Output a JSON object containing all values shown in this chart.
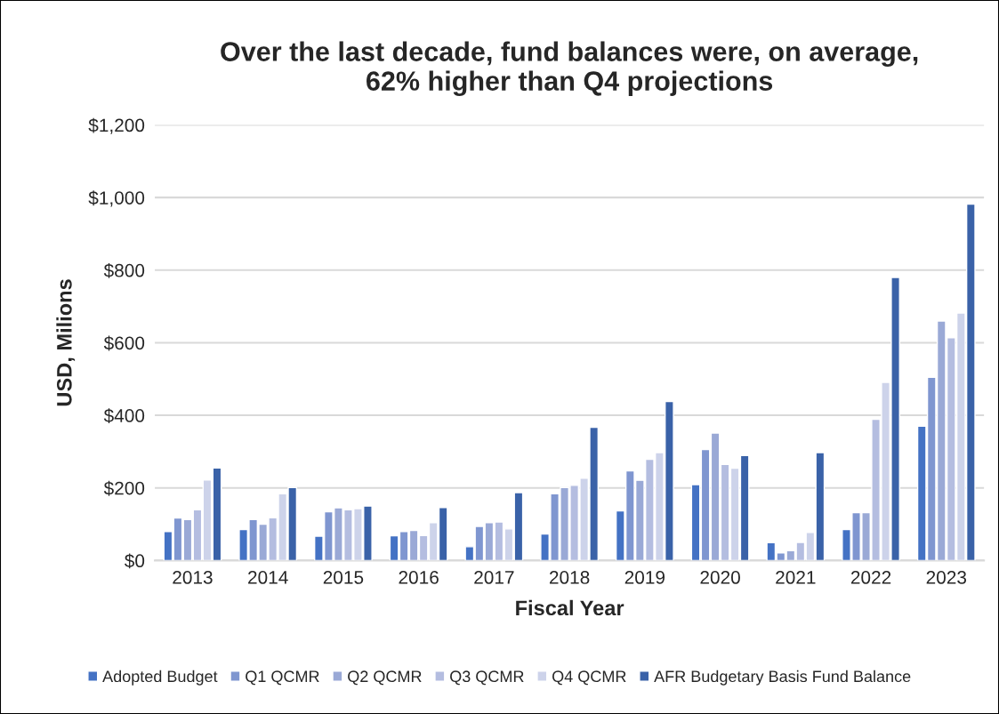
{
  "chart_data": {
    "type": "bar",
    "title": "Over the last decade, fund balances were, on average,\n62% higher than Q4 projections",
    "xlabel": "Fiscal Year",
    "ylabel": "USD, Milions",
    "categories": [
      "2013",
      "2014",
      "2015",
      "2016",
      "2017",
      "2018",
      "2019",
      "2020",
      "2021",
      "2022",
      "2023"
    ],
    "series": [
      {
        "name": "Adopted Budget",
        "color": "#4472c4",
        "values": [
          80,
          85,
          67,
          68,
          38,
          73,
          137,
          209,
          49,
          85,
          370
        ]
      },
      {
        "name": "Q1 QCMR",
        "color": "#7f96d0",
        "values": [
          117,
          113,
          134,
          80,
          94,
          184,
          247,
          306,
          21,
          132,
          505
        ]
      },
      {
        "name": "Q2 QCMR",
        "color": "#9aa9d6",
        "values": [
          113,
          100,
          145,
          83,
          104,
          201,
          221,
          351,
          27,
          132,
          660
        ]
      },
      {
        "name": "Q3 QCMR",
        "color": "#b4bde0",
        "values": [
          140,
          118,
          140,
          69,
          106,
          207,
          279,
          265,
          50,
          389,
          614
        ]
      },
      {
        "name": "Q4 QCMR",
        "color": "#cdd3ea",
        "values": [
          222,
          184,
          143,
          104,
          87,
          227,
          297,
          254,
          77,
          491,
          682
        ]
      },
      {
        "name": "AFR Budgetary Basis Fund Balance",
        "color": "#3a62a8",
        "values": [
          255,
          201,
          150,
          146,
          187,
          367,
          438,
          289,
          297,
          780,
          982
        ]
      }
    ],
    "ylim": [
      0,
      1200
    ],
    "yticks": [
      {
        "value": 0,
        "label": "$0"
      },
      {
        "value": 200,
        "label": "$200"
      },
      {
        "value": 400,
        "label": "$400"
      },
      {
        "value": 600,
        "label": "$600"
      },
      {
        "value": 800,
        "label": "$800"
      },
      {
        "value": 1000,
        "label": "$1,000"
      },
      {
        "value": 1200,
        "label": "$1,200"
      }
    ],
    "grid": "y",
    "legend": "bottom"
  }
}
